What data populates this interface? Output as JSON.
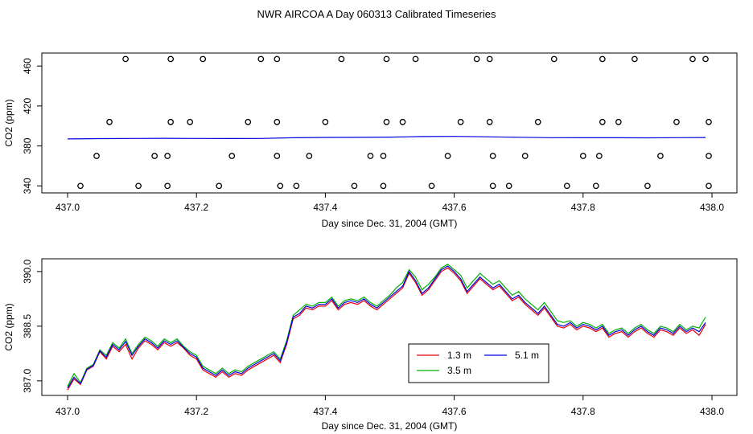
{
  "title": "NWR AIRCOA A  Day 060313  Calibrated Timeseries",
  "colors": {
    "red": "#e8000b",
    "green": "#00b000",
    "blue": "#0000e0",
    "black": "#000000"
  },
  "chart_data": [
    {
      "type": "scatter",
      "xlabel": "Day since Dec. 31, 2004 (GMT)",
      "ylabel": "CO2 (ppm)",
      "xlim": [
        437.0,
        438.0
      ],
      "ylim": [
        333,
        473
      ],
      "xticks": [
        "437.0",
        "437.2",
        "437.4",
        "437.6",
        "437.8",
        "438.0"
      ],
      "yticks": [
        "340",
        "380",
        "420",
        "460"
      ],
      "legend": "none",
      "grid": false,
      "series": [
        {
          "kind": "open-circle",
          "color": "#000000",
          "x": [
            437.09,
            437.16,
            437.21,
            437.3,
            437.325,
            437.425,
            437.495,
            437.54,
            437.635,
            437.655,
            437.755,
            437.83,
            437.88,
            437.97,
            437.99,
            437.065,
            437.16,
            437.19,
            437.28,
            437.325,
            437.4,
            437.495,
            437.52,
            437.61,
            437.655,
            437.73,
            437.83,
            437.855,
            437.945,
            437.995,
            437.045,
            437.135,
            437.155,
            437.255,
            437.325,
            437.375,
            437.47,
            437.49,
            437.59,
            437.66,
            437.71,
            437.8,
            437.825,
            437.92,
            437.995,
            437.02,
            437.11,
            437.155,
            437.235,
            437.33,
            437.355,
            437.445,
            437.49,
            437.565,
            437.66,
            437.685,
            437.775,
            437.82,
            437.9,
            437.995
          ],
          "y": [
            467,
            467,
            467,
            467,
            467,
            467,
            467,
            467,
            467,
            467,
            467,
            467,
            467,
            467,
            467,
            404,
            404,
            404,
            404,
            404,
            404,
            404,
            404,
            404,
            404,
            404,
            404,
            404,
            404,
            404,
            370,
            370,
            370,
            370,
            370,
            370,
            370,
            370,
            370,
            370,
            370,
            370,
            370,
            370,
            370,
            340,
            340,
            340,
            340,
            340,
            340,
            340,
            340,
            340,
            340,
            340,
            340,
            340,
            340,
            340
          ]
        },
        {
          "kind": "line",
          "color": "#0000e0",
          "x": [
            437.0,
            437.05,
            437.1,
            437.15,
            437.2,
            437.25,
            437.3,
            437.35,
            437.4,
            437.45,
            437.5,
            437.55,
            437.6,
            437.65,
            437.7,
            437.75,
            437.8,
            437.85,
            437.9,
            437.95,
            437.99
          ],
          "y": [
            387.0,
            387.3,
            387.5,
            387.6,
            387.5,
            387.4,
            387.5,
            388.2,
            388.5,
            388.6,
            388.8,
            389.4,
            389.6,
            389.2,
            388.7,
            388.3,
            388.2,
            388.2,
            388.1,
            388.3,
            388.4
          ]
        }
      ]
    },
    {
      "type": "line",
      "xlabel": "Day since Dec. 31, 2004 (GMT)",
      "ylabel": "CO2 (ppm)",
      "xlim": [
        437.0,
        438.0
      ],
      "ylim": [
        386.6,
        390.35
      ],
      "xticks": [
        "437.0",
        "437.2",
        "437.4",
        "437.6",
        "437.8",
        "438.0"
      ],
      "yticks": [
        "387.0",
        "388.5",
        "390.0"
      ],
      "legend": "bottom-center",
      "grid": false,
      "x": [
        437.0,
        437.01,
        437.02,
        437.03,
        437.04,
        437.05,
        437.06,
        437.07,
        437.08,
        437.09,
        437.1,
        437.11,
        437.12,
        437.13,
        437.14,
        437.15,
        437.16,
        437.17,
        437.18,
        437.19,
        437.2,
        437.21,
        437.22,
        437.23,
        437.24,
        437.25,
        437.26,
        437.27,
        437.28,
        437.29,
        437.3,
        437.31,
        437.32,
        437.33,
        437.34,
        437.35,
        437.36,
        437.37,
        437.38,
        437.39,
        437.4,
        437.41,
        437.42,
        437.43,
        437.44,
        437.45,
        437.46,
        437.47,
        437.48,
        437.49,
        437.5,
        437.51,
        437.52,
        437.53,
        437.54,
        437.55,
        437.56,
        437.57,
        437.58,
        437.59,
        437.6,
        437.61,
        437.62,
        437.63,
        437.64,
        437.65,
        437.66,
        437.67,
        437.68,
        437.69,
        437.7,
        437.71,
        437.72,
        437.73,
        437.74,
        437.75,
        437.76,
        437.77,
        437.78,
        437.79,
        437.8,
        437.81,
        437.82,
        437.83,
        437.84,
        437.85,
        437.86,
        437.87,
        437.88,
        437.89,
        437.9,
        437.91,
        437.92,
        437.93,
        437.94,
        437.95,
        437.96,
        437.97,
        437.98,
        437.99
      ],
      "series": [
        {
          "name": "1.3 m",
          "color": "#e8000b",
          "y": [
            386.75,
            387.05,
            386.9,
            387.3,
            387.4,
            387.8,
            387.6,
            387.95,
            387.8,
            388.0,
            387.6,
            387.9,
            388.1,
            388.0,
            387.85,
            388.05,
            387.95,
            388.05,
            387.9,
            387.7,
            387.6,
            387.3,
            387.2,
            387.1,
            387.25,
            387.1,
            387.2,
            387.15,
            387.3,
            387.4,
            387.5,
            387.6,
            387.7,
            387.5,
            388.0,
            388.7,
            388.8,
            389.0,
            388.95,
            389.05,
            389.05,
            389.2,
            388.95,
            389.1,
            389.15,
            389.1,
            389.2,
            389.05,
            388.95,
            389.1,
            389.25,
            389.4,
            389.55,
            389.95,
            389.7,
            389.35,
            389.5,
            389.75,
            390.0,
            390.1,
            389.95,
            389.75,
            389.4,
            389.6,
            389.8,
            389.65,
            389.5,
            389.6,
            389.4,
            389.2,
            389.3,
            389.1,
            388.95,
            388.8,
            389.0,
            388.75,
            388.5,
            388.45,
            388.55,
            388.4,
            388.5,
            388.45,
            388.35,
            388.45,
            388.2,
            388.3,
            388.35,
            388.2,
            388.35,
            388.45,
            388.3,
            388.2,
            388.4,
            388.35,
            388.25,
            388.45,
            388.3,
            388.4,
            388.25,
            388.55
          ]
        },
        {
          "name": "3.5 m",
          "color": "#00b000",
          "y": [
            386.85,
            387.2,
            386.95,
            387.35,
            387.45,
            387.85,
            387.7,
            388.05,
            387.9,
            388.15,
            387.75,
            388.0,
            388.2,
            388.1,
            387.95,
            388.15,
            388.05,
            388.15,
            387.95,
            387.8,
            387.7,
            387.4,
            387.3,
            387.2,
            387.35,
            387.2,
            387.3,
            387.25,
            387.4,
            387.5,
            387.6,
            387.7,
            387.8,
            387.6,
            388.1,
            388.8,
            388.95,
            389.1,
            389.05,
            389.15,
            389.15,
            389.3,
            389.05,
            389.2,
            389.25,
            389.2,
            389.3,
            389.15,
            389.05,
            389.2,
            389.35,
            389.55,
            389.7,
            390.05,
            389.85,
            389.5,
            389.65,
            389.85,
            390.1,
            390.2,
            390.05,
            389.9,
            389.55,
            389.75,
            389.95,
            389.8,
            389.65,
            389.75,
            389.55,
            389.35,
            389.45,
            389.25,
            389.1,
            388.95,
            389.15,
            388.9,
            388.65,
            388.6,
            388.65,
            388.5,
            388.6,
            388.55,
            388.45,
            388.55,
            388.3,
            388.4,
            388.45,
            388.3,
            388.45,
            388.55,
            388.4,
            388.3,
            388.5,
            388.45,
            388.35,
            388.55,
            388.4,
            388.5,
            388.45,
            388.75
          ]
        },
        {
          "name": "5.1 m",
          "color": "#0000e0",
          "y": [
            386.8,
            387.1,
            386.92,
            387.32,
            387.42,
            387.82,
            387.65,
            388.0,
            387.85,
            388.08,
            387.7,
            387.95,
            388.15,
            388.05,
            387.9,
            388.1,
            388.0,
            388.1,
            387.92,
            387.75,
            387.65,
            387.35,
            387.25,
            387.15,
            387.3,
            387.15,
            387.25,
            387.2,
            387.35,
            387.45,
            387.55,
            387.65,
            387.75,
            387.55,
            388.05,
            388.75,
            388.85,
            389.05,
            389.0,
            389.1,
            389.1,
            389.25,
            389.0,
            389.15,
            389.2,
            389.15,
            389.25,
            389.1,
            389.0,
            389.15,
            389.3,
            389.45,
            389.6,
            390.0,
            389.75,
            389.4,
            389.55,
            389.8,
            390.05,
            390.15,
            390.0,
            389.8,
            389.45,
            389.65,
            389.85,
            389.7,
            389.55,
            389.65,
            389.45,
            389.25,
            389.35,
            389.15,
            389.0,
            388.85,
            389.05,
            388.8,
            388.55,
            388.5,
            388.6,
            388.45,
            388.55,
            388.5,
            388.4,
            388.5,
            388.25,
            388.35,
            388.4,
            388.25,
            388.4,
            388.5,
            388.35,
            388.25,
            388.45,
            388.4,
            388.3,
            388.5,
            388.35,
            388.45,
            388.35,
            388.6
          ]
        }
      ]
    }
  ]
}
